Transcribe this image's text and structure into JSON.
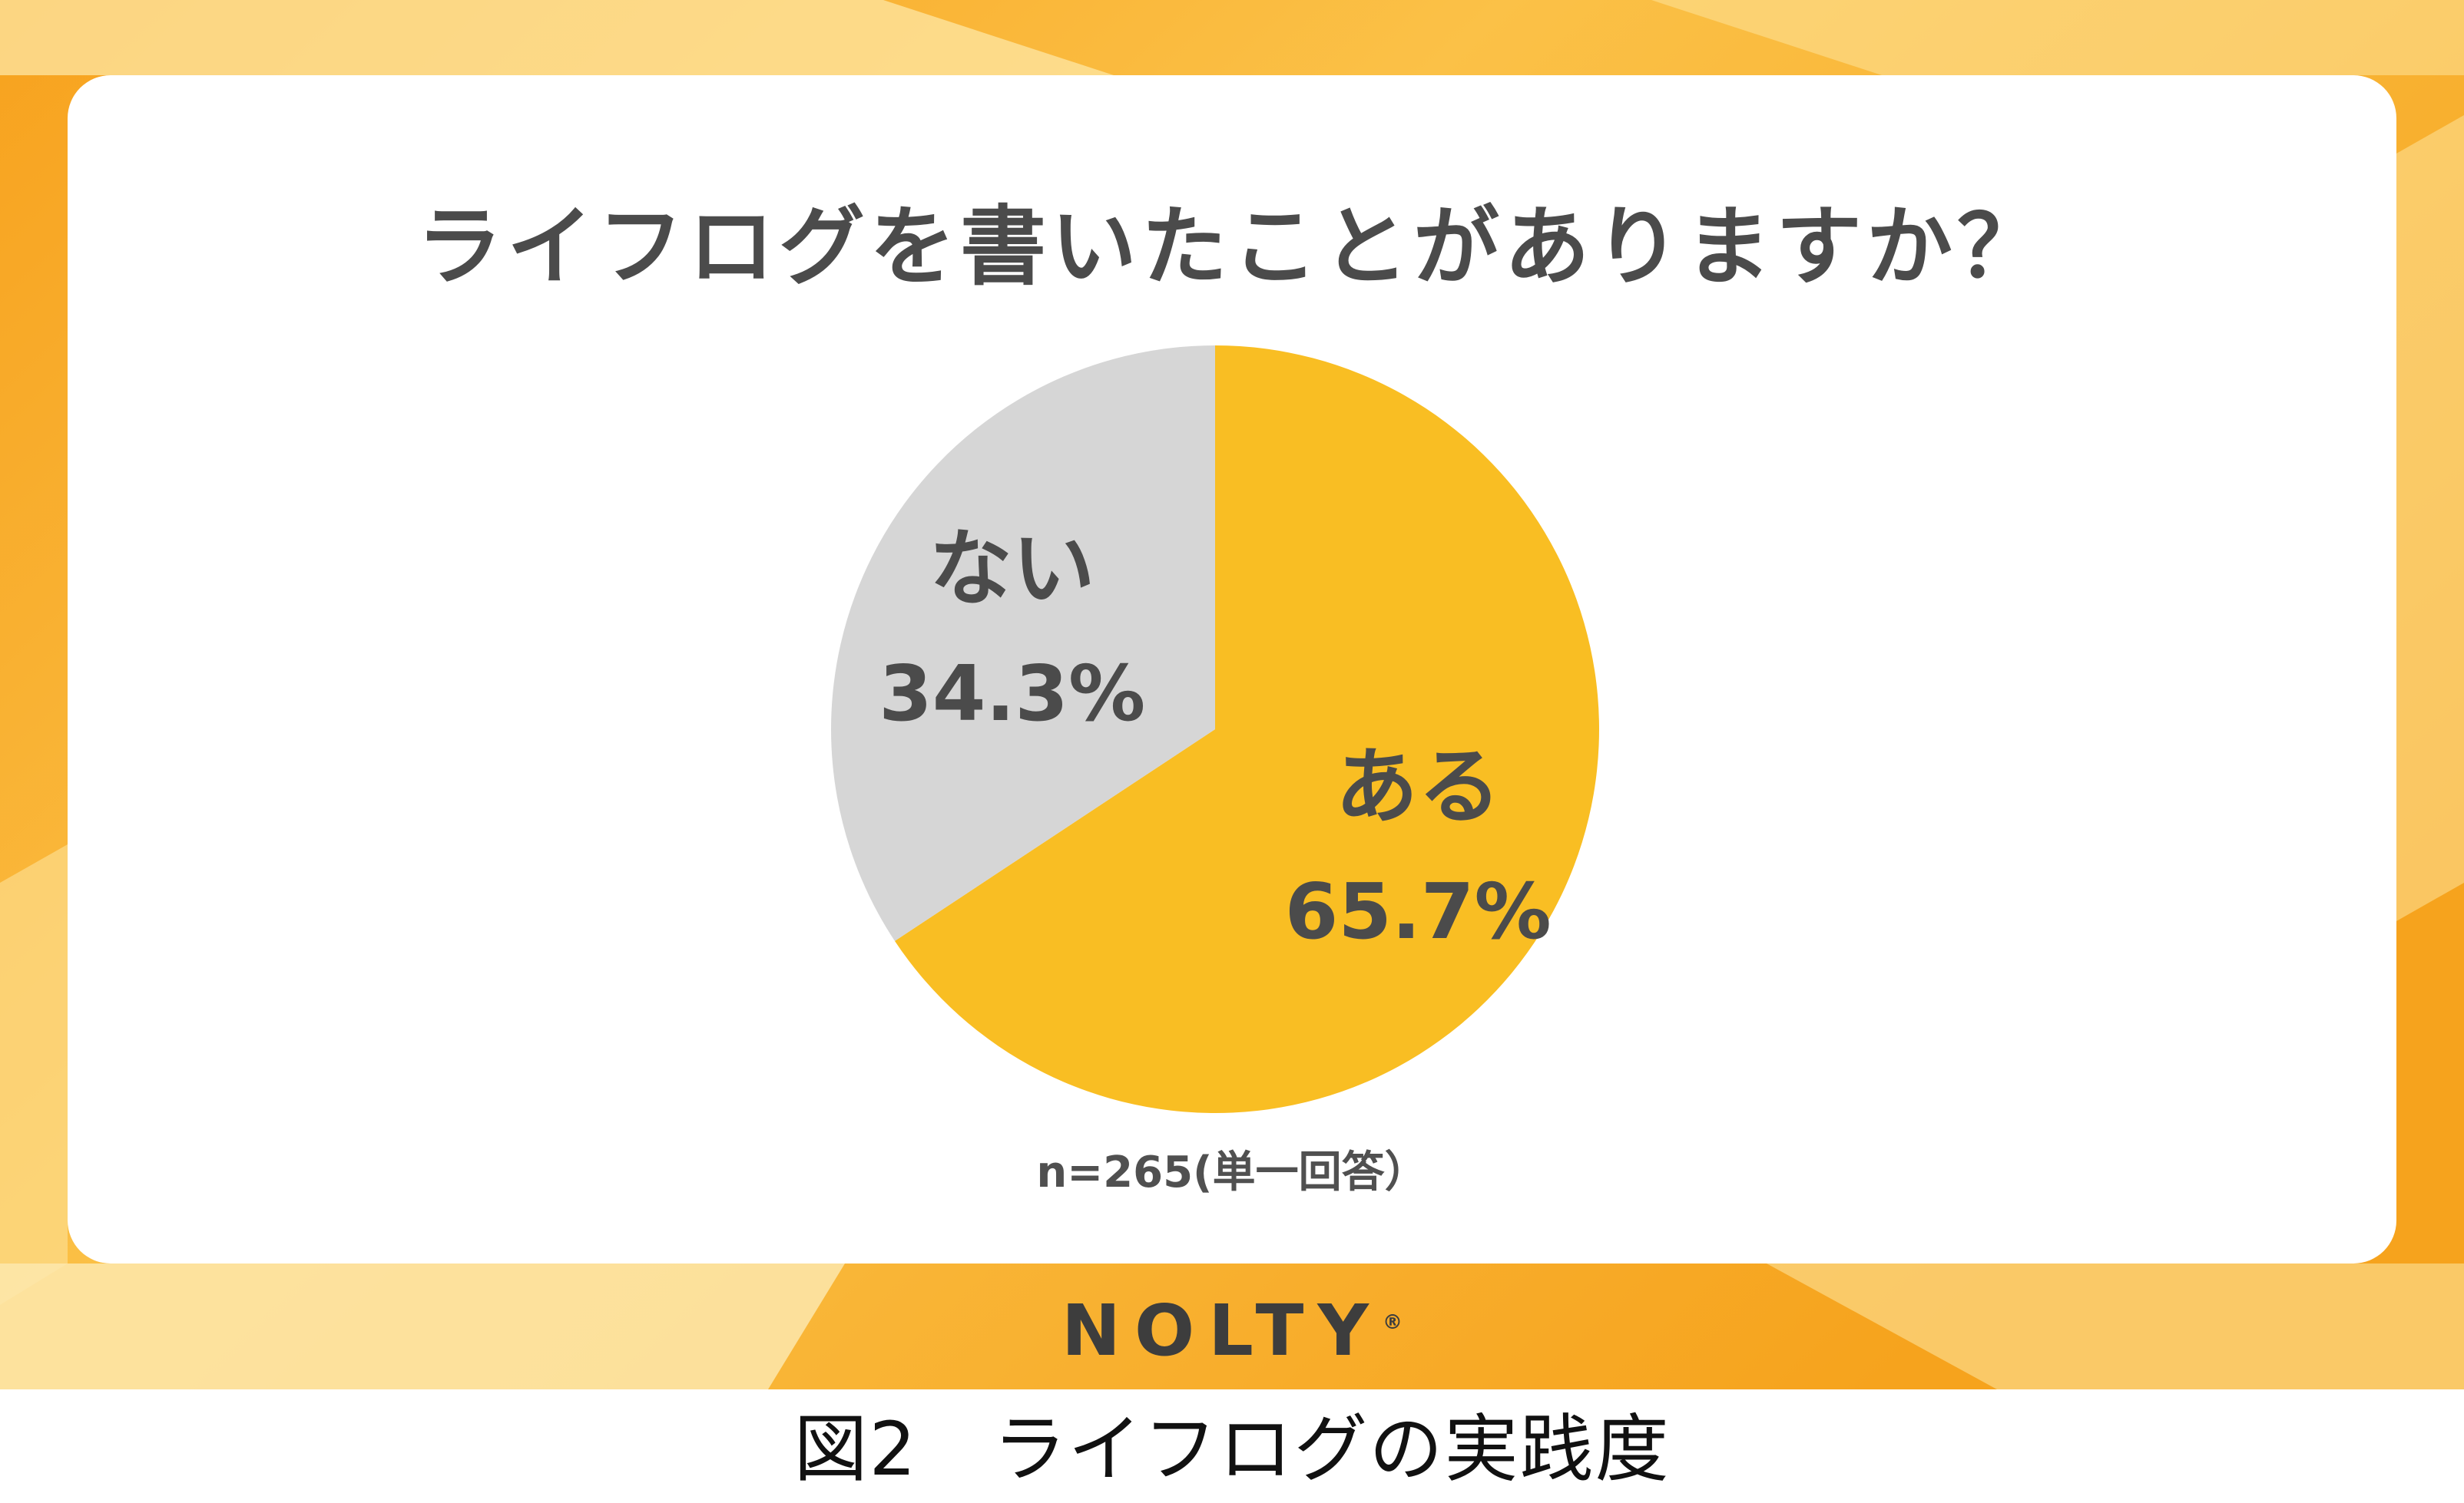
{
  "chart_data": {
    "type": "pie",
    "title": "ライフログを書いたことがありますか？",
    "slices": [
      {
        "label": "ある",
        "value": 65.7,
        "display": "65.7%",
        "color": "#f9be23"
      },
      {
        "label": "ない",
        "value": 34.3,
        "display": "34.3%",
        "color": "#d6d6d6"
      }
    ],
    "start": "12 o'clock",
    "direction": "clockwise",
    "note": "n=265(単一回答）",
    "legend": "none"
  },
  "brand": {
    "name": "NOLTY",
    "mark": "®"
  },
  "caption": "図2　ライフログの実践度",
  "colors": {
    "background_warm": "#f7a520",
    "background_light": "#fde39a",
    "label_text": "#4b4b4b"
  }
}
